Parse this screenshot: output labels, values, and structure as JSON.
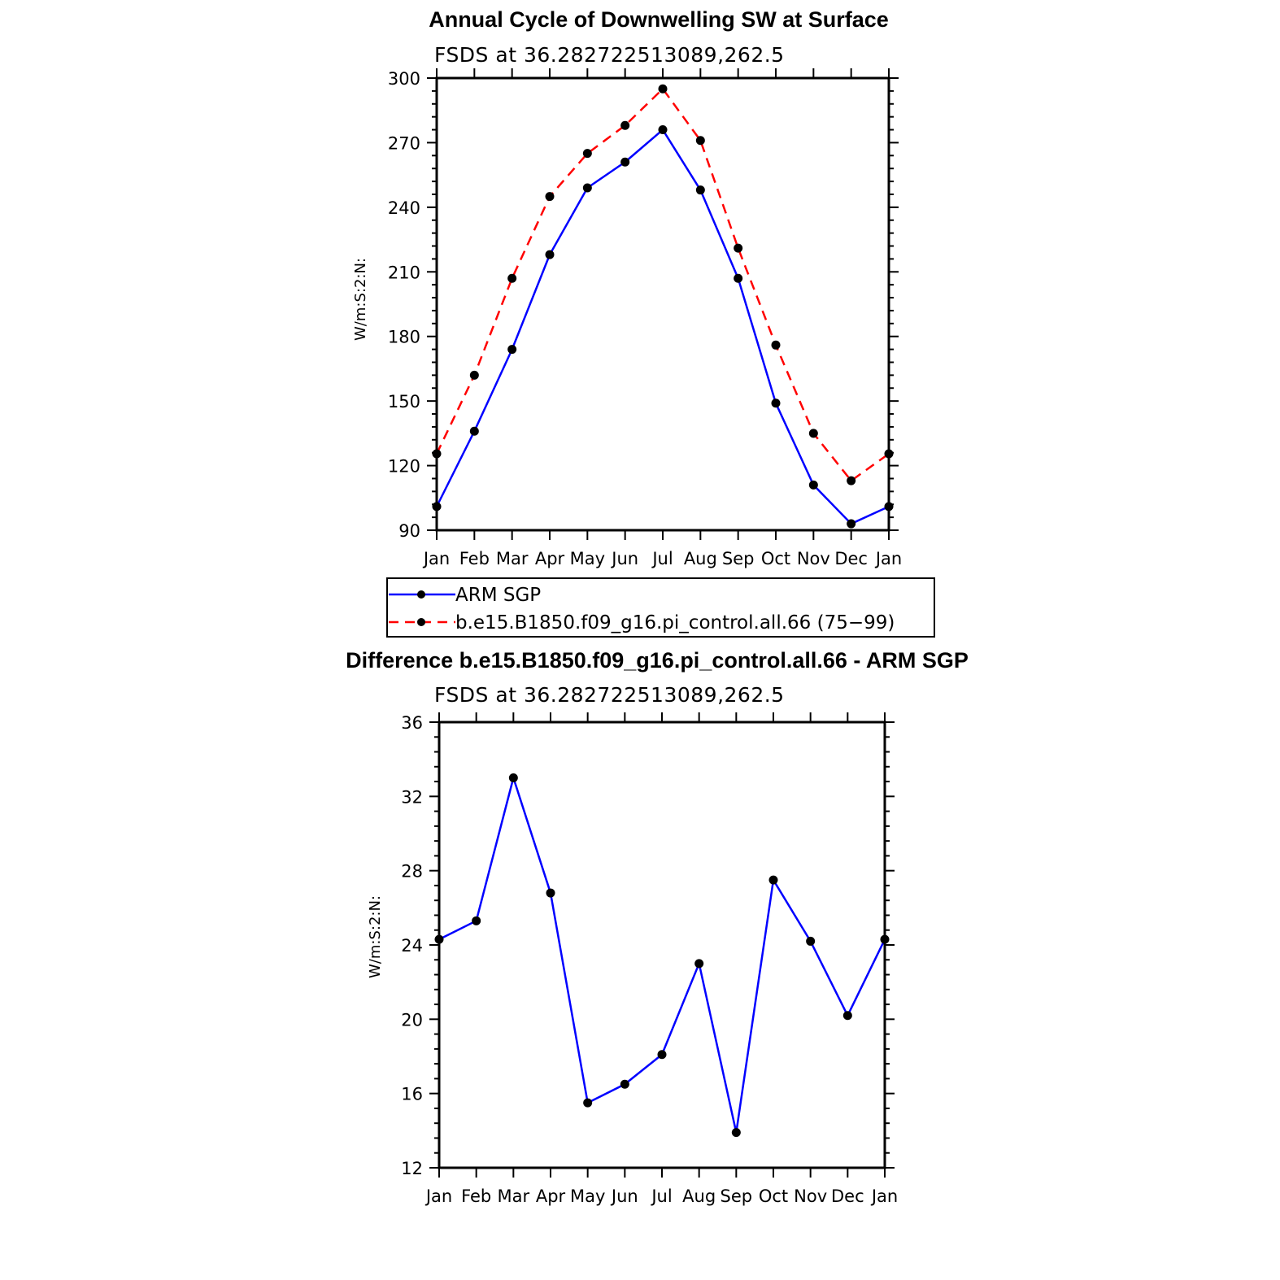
{
  "chart_data": [
    {
      "type": "line",
      "title": "Annual Cycle of Downwelling SW at Surface",
      "subtitle": "FSDS at 36.282722513089,262.5",
      "ylabel": "W/m:S:2:N:",
      "xlabel": "",
      "categories": [
        "Jan",
        "Feb",
        "Mar",
        "Apr",
        "May",
        "Jun",
        "Jul",
        "Aug",
        "Sep",
        "Oct",
        "Nov",
        "Dec",
        "Jan"
      ],
      "ylim": [
        90,
        300
      ],
      "yticks": [
        90,
        120,
        150,
        180,
        210,
        240,
        270,
        300
      ],
      "series": [
        {
          "name": "ARM SGP",
          "color": "#0000ff",
          "dash": "solid",
          "values": [
            101,
            136,
            174,
            218,
            249,
            261,
            276,
            248,
            207,
            149,
            111,
            93,
            101
          ]
        },
        {
          "name": "b.e15.B1850.f09_g16.pi_control.all.66 (75−99)",
          "color": "#ff0000",
          "dash": "dashed",
          "values": [
            125.5,
            162,
            207,
            245,
            265,
            278,
            295,
            271,
            221,
            176,
            135,
            113,
            125.5
          ]
        }
      ],
      "legend": {
        "position": "below",
        "box": true
      }
    },
    {
      "type": "line",
      "title": "Difference b.e15.B1850.f09_g16.pi_control.all.66 - ARM SGP",
      "subtitle": "FSDS at 36.282722513089,262.5",
      "ylabel": "W/m:S:2:N:",
      "xlabel": "",
      "categories": [
        "Jan",
        "Feb",
        "Mar",
        "Apr",
        "May",
        "Jun",
        "Jul",
        "Aug",
        "Sep",
        "Oct",
        "Nov",
        "Dec",
        "Jan"
      ],
      "ylim": [
        12,
        36
      ],
      "yticks": [
        12,
        16,
        20,
        24,
        28,
        32,
        36
      ],
      "series": [
        {
          "name": "",
          "color": "#0000ff",
          "dash": "solid",
          "values": [
            24.3,
            25.3,
            33.0,
            26.8,
            15.5,
            16.5,
            18.1,
            23.0,
            13.9,
            27.5,
            24.2,
            20.2,
            24.3
          ]
        }
      ]
    }
  ]
}
